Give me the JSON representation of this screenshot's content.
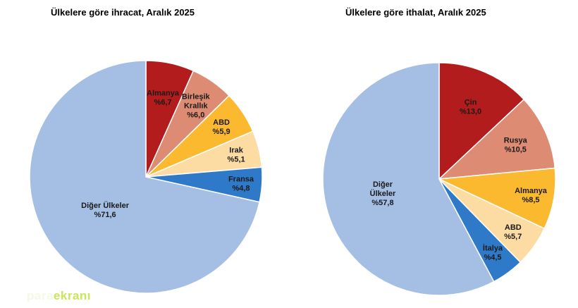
{
  "chart_data": [
    {
      "type": "pie",
      "title": "Ülkelere göre ihracat, Aralık 2025",
      "slices": [
        {
          "label": "Almanya",
          "value_label": "%6,7",
          "value": 6.7,
          "color": "#b31c1c"
        },
        {
          "label": "Birleşik Krallık",
          "value_label": "%6,0",
          "value": 6.0,
          "color": "#de8b73"
        },
        {
          "label": "ABD",
          "value_label": "%5,9",
          "value": 5.9,
          "color": "#fbb92f"
        },
        {
          "label": "Irak",
          "value_label": "%5,1",
          "value": 5.1,
          "color": "#fcdca2"
        },
        {
          "label": "Fransa",
          "value_label": "%4,8",
          "value": 4.8,
          "color": "#2e7ac8"
        },
        {
          "label": "Diğer Ülkeler",
          "value_label": "%71,6",
          "value": 71.6,
          "color": "#a5bfe4"
        }
      ]
    },
    {
      "type": "pie",
      "title": "Ülkelere göre ithalat, Aralık 2025",
      "slices": [
        {
          "label": "Çin",
          "value_label": "%13,0",
          "value": 13.0,
          "color": "#b31c1c"
        },
        {
          "label": "Rusya",
          "value_label": "%10,5",
          "value": 10.5,
          "color": "#de8b73"
        },
        {
          "label": "Almanya",
          "value_label": "%8,5",
          "value": 8.5,
          "color": "#fbb92f"
        },
        {
          "label": "ABD",
          "value_label": "%5,7",
          "value": 5.7,
          "color": "#fcdca2"
        },
        {
          "label": "İtalya",
          "value_label": "%4,5",
          "value": 4.5,
          "color": "#2e7ac8"
        },
        {
          "label": "Diğer Ülkeler",
          "value_label": "%57,8",
          "value": 57.8,
          "color": "#a5bfe4"
        }
      ]
    }
  ],
  "watermark": {
    "part1": "para",
    "part2": "ekranı"
  }
}
